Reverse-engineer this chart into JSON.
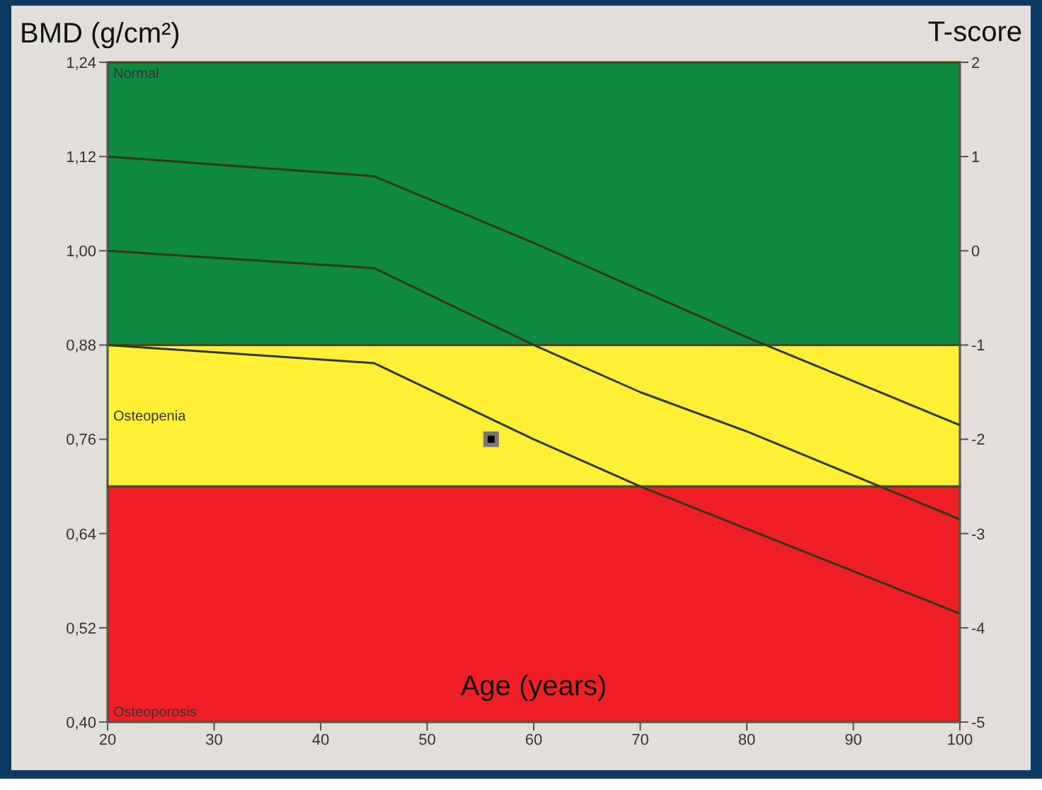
{
  "chart_data": {
    "type": "line",
    "ylabel": "BMD (g/cm²)",
    "y2label": "T-score",
    "xlabel": "Age (years)",
    "xlim": [
      20,
      100
    ],
    "xticks": [
      20,
      30,
      40,
      50,
      60,
      70,
      80,
      90,
      100
    ],
    "ylim": [
      0.4,
      1.24
    ],
    "yticks": [
      {
        "value": 0.4,
        "label": "0,40"
      },
      {
        "value": 0.52,
        "label": "0,52"
      },
      {
        "value": 0.64,
        "label": "0,64"
      },
      {
        "value": 0.76,
        "label": "0,76"
      },
      {
        "value": 0.88,
        "label": "0,88"
      },
      {
        "value": 1.0,
        "label": "1,00"
      },
      {
        "value": 1.12,
        "label": "1,12"
      },
      {
        "value": 1.24,
        "label": "1,24"
      }
    ],
    "y2lim": [
      -5,
      2
    ],
    "y2ticks": [
      -5,
      -4,
      -3,
      -2,
      -1,
      0,
      1,
      2
    ],
    "bands": [
      {
        "axis": "y",
        "from": 0.88,
        "to": 1.24,
        "label": "Normal",
        "color": "#0f8a45"
      },
      {
        "axis": "y",
        "from": 0.7,
        "to": 0.88,
        "label": "Osteopenia",
        "color": "#fff035"
      },
      {
        "axis": "y",
        "from": 0.4,
        "to": 0.7,
        "label": "Osteoporosis",
        "color": "#f01f26"
      }
    ],
    "series": [
      {
        "color": "#2e3a14",
        "x": [
          20,
          45,
          60,
          70,
          80,
          100
        ],
        "values": [
          1.12,
          1.095,
          1.01,
          0.95,
          0.89,
          0.778
        ]
      },
      {
        "color": "#2e3a14",
        "x": [
          20,
          45,
          60,
          70,
          80,
          100
        ],
        "values": [
          1.0,
          0.978,
          0.88,
          0.82,
          0.77,
          0.658
        ]
      },
      {
        "color": "#2e3a14",
        "x": [
          20,
          45,
          60,
          70,
          80,
          100
        ],
        "values": [
          0.88,
          0.857,
          0.76,
          0.7,
          0.646,
          0.538
        ]
      },
      {
        "type": "scatter",
        "color": "#000000",
        "x": [
          56
        ],
        "values": [
          0.76
        ],
        "marker": "square"
      }
    ]
  }
}
